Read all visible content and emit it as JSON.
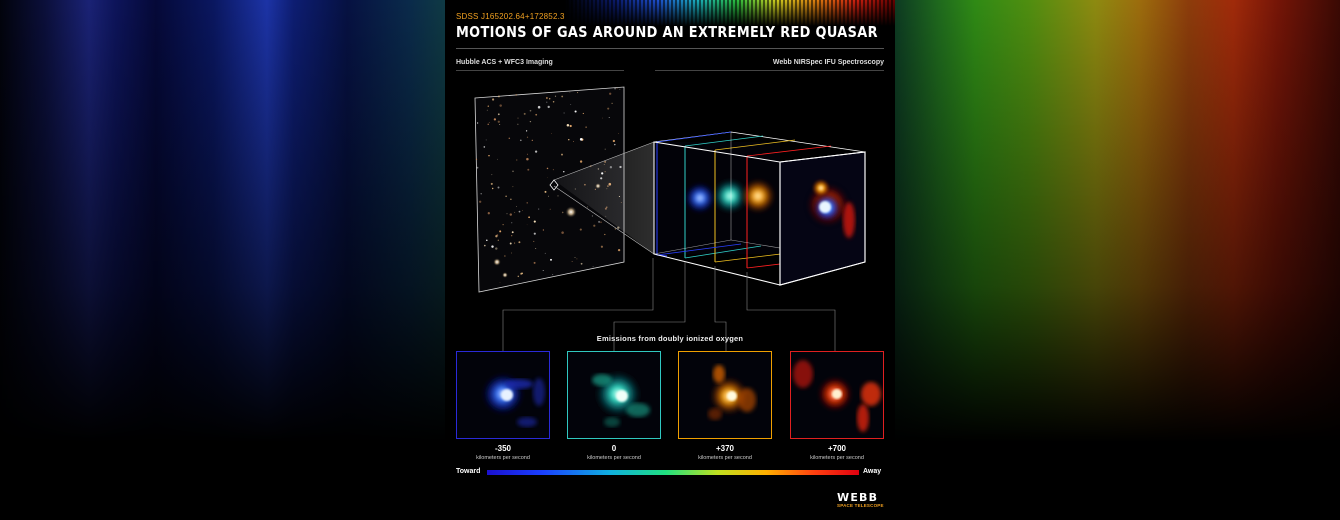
{
  "target": "SDSS J165202.64+172852.3",
  "title": "MOTIONS OF GAS AROUND AN EXTREMELY RED QUASAR",
  "labels": {
    "hubble": "Hubble ACS + WFC3 Imaging",
    "webb": "Webb NIRSpec IFU Spectroscopy"
  },
  "emissions_title": "Emissions from doubly ionized oxygen",
  "panels": [
    {
      "velocity": "-350",
      "unit": "kilometers per second",
      "color": "#2a2ad8"
    },
    {
      "velocity": "0",
      "unit": "kilometers per second",
      "color": "#30c8c0"
    },
    {
      "velocity": "+370",
      "unit": "kilometers per second",
      "color": "#f0a000"
    },
    {
      "velocity": "+700",
      "unit": "kilometers per second",
      "color": "#e02020"
    }
  ],
  "scale": {
    "toward": "Toward",
    "away": "Away"
  },
  "logo": {
    "name": "WEBB",
    "subtitle": "SPACE TELESCOPE"
  }
}
